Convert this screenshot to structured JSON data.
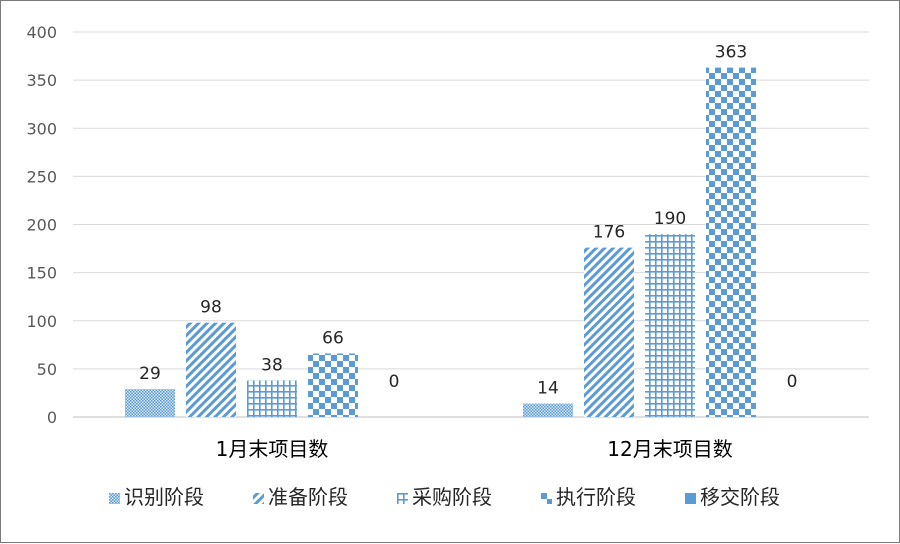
{
  "chart_data": {
    "type": "bar",
    "categories": [
      "1月末项目数",
      "12月末项目数"
    ],
    "series": [
      {
        "name": "识别阶段",
        "values": [
          29,
          14
        ],
        "pattern": "dots"
      },
      {
        "name": "准备阶段",
        "values": [
          98,
          176
        ],
        "pattern": "diagonal"
      },
      {
        "name": "采购阶段",
        "values": [
          38,
          190
        ],
        "pattern": "grid"
      },
      {
        "name": "执行阶段",
        "values": [
          66,
          363
        ],
        "pattern": "checker"
      },
      {
        "name": "移交阶段",
        "values": [
          0,
          0
        ],
        "pattern": "solid"
      }
    ],
    "y_ticks": [
      "0",
      "50",
      "100",
      "150",
      "200",
      "250",
      "300",
      "350",
      "400"
    ],
    "ylim": [
      0,
      400
    ],
    "grid": true,
    "legend_position": "bottom",
    "color": "#5b9bd5",
    "grid_color": "#d9d9d9"
  }
}
